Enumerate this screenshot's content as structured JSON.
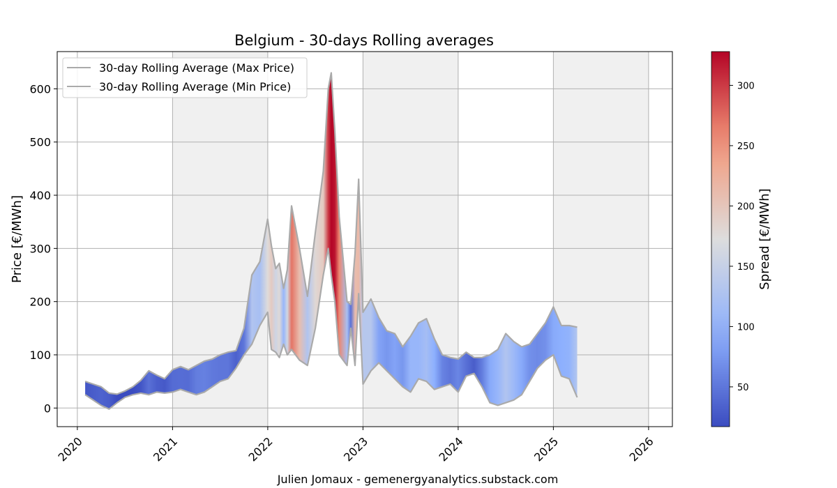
{
  "chart_data": {
    "type": "area",
    "title": "Belgium - 30-days Rolling averages",
    "xlabel": "",
    "ylabel": "Price [€/MWh]",
    "credit": "Julien Jomaux - gemenergyanalytics.substack.com",
    "x_ticks": [
      "2020",
      "2021",
      "2022",
      "2023",
      "2024",
      "2025",
      "2026"
    ],
    "y_ticks": [
      "0",
      "100",
      "200",
      "300",
      "400",
      "500",
      "600"
    ],
    "xlim": [
      "2019-10-15",
      "2026-04-01"
    ],
    "ylim": [
      -35,
      670
    ],
    "grid": true,
    "legend_position": "top-left",
    "shaded_years": [
      "2021",
      "2023",
      "2025"
    ],
    "series": [
      {
        "name": "30-day Rolling Average (Max Price)",
        "color": "#aaaaaa",
        "x": [
          "2020-01-31",
          "2020-03-01",
          "2020-04-01",
          "2020-05-01",
          "2020-06-01",
          "2020-07-01",
          "2020-08-01",
          "2020-09-01",
          "2020-10-01",
          "2020-11-01",
          "2020-12-01",
          "2021-01-01",
          "2021-02-01",
          "2021-03-01",
          "2021-04-01",
          "2021-05-01",
          "2021-06-01",
          "2021-07-01",
          "2021-08-01",
          "2021-09-01",
          "2021-10-01",
          "2021-11-01",
          "2021-12-01",
          "2021-12-31",
          "2022-01-15",
          "2022-02-01",
          "2022-02-15",
          "2022-03-01",
          "2022-03-15",
          "2022-04-01",
          "2022-05-01",
          "2022-06-01",
          "2022-07-01",
          "2022-08-01",
          "2022-08-20",
          "2022-09-01",
          "2022-09-15",
          "2022-10-01",
          "2022-11-01",
          "2022-11-15",
          "2022-12-01",
          "2022-12-15",
          "2023-01-01",
          "2023-02-01",
          "2023-03-01",
          "2023-04-01",
          "2023-05-01",
          "2023-06-01",
          "2023-07-01",
          "2023-08-01",
          "2023-09-01",
          "2023-10-01",
          "2023-11-01",
          "2023-12-01",
          "2024-01-01",
          "2024-02-01",
          "2024-03-01",
          "2024-04-01",
          "2024-05-01",
          "2024-06-01",
          "2024-07-01",
          "2024-08-01",
          "2024-09-01",
          "2024-10-01",
          "2024-11-01",
          "2024-12-01",
          "2025-01-01",
          "2025-02-01",
          "2025-03-01",
          "2025-04-01"
        ],
        "values": [
          50,
          45,
          40,
          28,
          26,
          32,
          40,
          52,
          70,
          62,
          55,
          72,
          78,
          72,
          80,
          88,
          92,
          100,
          105,
          108,
          150,
          250,
          275,
          355,
          305,
          262,
          272,
          225,
          260,
          380,
          300,
          210,
          330,
          445,
          600,
          630,
          520,
          360,
          200,
          195,
          290,
          430,
          180,
          205,
          170,
          145,
          140,
          115,
          135,
          160,
          168,
          130,
          100,
          95,
          92,
          105,
          95,
          95,
          100,
          110,
          140,
          125,
          115,
          120,
          140,
          160,
          190,
          155,
          155,
          152
        ]
      },
      {
        "name": "30-day Rolling Average (Min Price)",
        "color": "#aaaaaa",
        "x": [
          "2020-01-31",
          "2020-03-01",
          "2020-04-01",
          "2020-05-01",
          "2020-06-01",
          "2020-07-01",
          "2020-08-01",
          "2020-09-01",
          "2020-10-01",
          "2020-11-01",
          "2020-12-01",
          "2021-01-01",
          "2021-02-01",
          "2021-03-01",
          "2021-04-01",
          "2021-05-01",
          "2021-06-01",
          "2021-07-01",
          "2021-08-01",
          "2021-09-01",
          "2021-10-01",
          "2021-11-01",
          "2021-12-01",
          "2021-12-31",
          "2022-01-15",
          "2022-02-01",
          "2022-02-15",
          "2022-03-01",
          "2022-03-15",
          "2022-04-01",
          "2022-05-01",
          "2022-06-01",
          "2022-07-01",
          "2022-08-01",
          "2022-08-20",
          "2022-09-01",
          "2022-09-15",
          "2022-10-01",
          "2022-11-01",
          "2022-11-15",
          "2022-12-01",
          "2022-12-15",
          "2023-01-01",
          "2023-02-01",
          "2023-03-01",
          "2023-04-01",
          "2023-05-01",
          "2023-06-01",
          "2023-07-01",
          "2023-08-01",
          "2023-09-01",
          "2023-10-01",
          "2023-11-01",
          "2023-12-01",
          "2024-01-01",
          "2024-02-01",
          "2024-03-01",
          "2024-04-01",
          "2024-05-01",
          "2024-06-01",
          "2024-07-01",
          "2024-08-01",
          "2024-09-01",
          "2024-10-01",
          "2024-11-01",
          "2024-12-01",
          "2025-01-01",
          "2025-02-01",
          "2025-03-01",
          "2025-04-01"
        ],
        "values": [
          25,
          15,
          5,
          -2,
          10,
          20,
          25,
          28,
          25,
          30,
          28,
          30,
          35,
          30,
          25,
          30,
          40,
          50,
          55,
          75,
          100,
          120,
          155,
          180,
          110,
          105,
          95,
          120,
          100,
          110,
          90,
          80,
          150,
          250,
          300,
          250,
          200,
          100,
          80,
          150,
          80,
          215,
          45,
          70,
          85,
          70,
          55,
          40,
          30,
          55,
          50,
          35,
          40,
          45,
          30,
          60,
          65,
          40,
          10,
          5,
          10,
          15,
          25,
          50,
          75,
          90,
          100,
          60,
          55,
          20
        ]
      }
    ],
    "spread_color_scale": {
      "label": "Spread [€/MWh]",
      "ticks": [
        "50",
        "100",
        "150",
        "200",
        "250",
        "300"
      ],
      "range": [
        17,
        328
      ],
      "colormap": "coolwarm"
    }
  }
}
